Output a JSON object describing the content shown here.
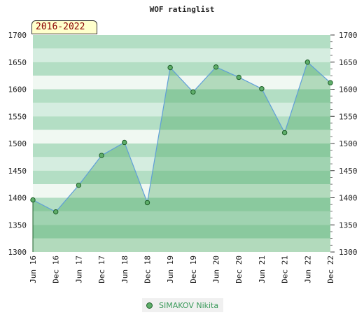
{
  "chart_data": {
    "type": "area",
    "title": "WOF ratinglist",
    "period_label": "2016-2022",
    "x": [
      "Jun 16",
      "Dec 16",
      "Jun 17",
      "Dec 17",
      "Jun 18",
      "Dec 18",
      "Jun 19",
      "Dec 19",
      "Jun 20",
      "Dec 20",
      "Jun 21",
      "Dec 21",
      "Jun 22",
      "Dec 22"
    ],
    "series": [
      {
        "name": "SIMAKOV Nikita",
        "values": [
          1396,
          1374,
          1423,
          1478,
          1502,
          1391,
          1640,
          1595,
          1641,
          1622,
          1601,
          1520,
          1650,
          1612
        ]
      }
    ],
    "ylim": [
      1300,
      1700
    ],
    "yticks": [
      1300,
      1350,
      1400,
      1450,
      1500,
      1550,
      1600,
      1650,
      1700
    ],
    "xlabel": "",
    "ylabel": "",
    "grid": true,
    "legend": "bottom-center",
    "colors": {
      "band_dark": "#b3dec4",
      "band_light": "#f0f8f2",
      "area_fill": "#3fa35a",
      "line": "#5f9ed8",
      "marker_fill": "#5fae6a",
      "marker_stroke": "#1f5f2a"
    }
  }
}
